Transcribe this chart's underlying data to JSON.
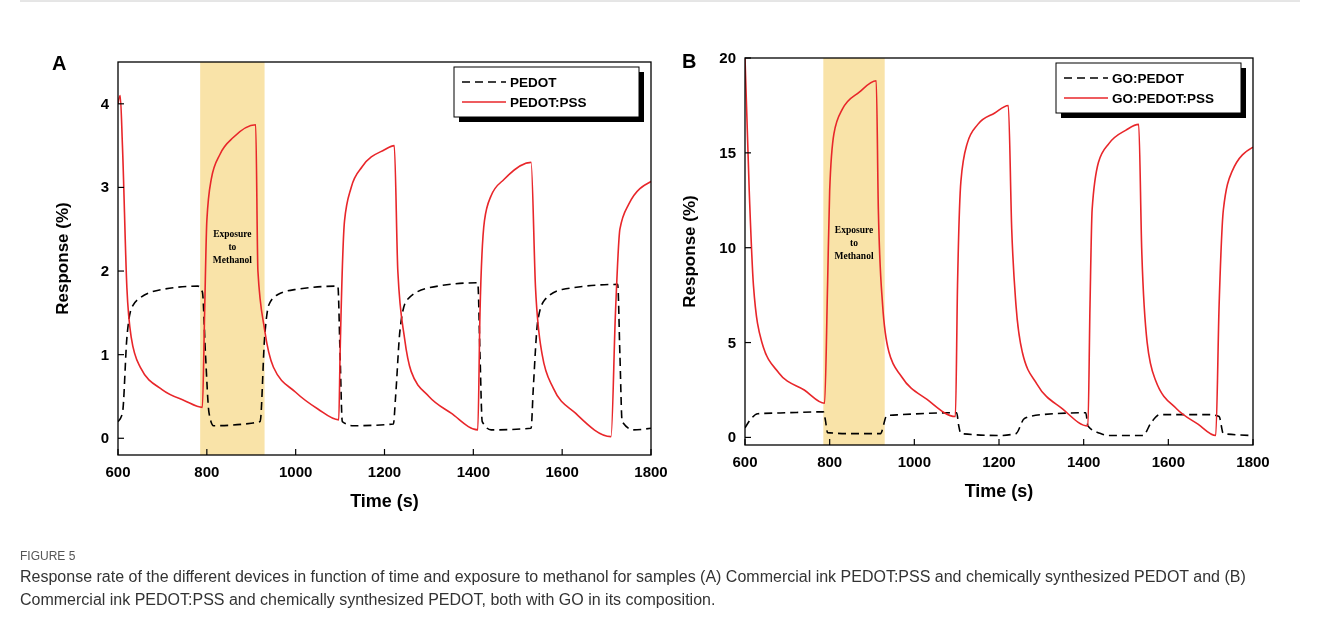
{
  "chart_data": [
    {
      "type": "line",
      "title": "A",
      "xlabel": "Time (s)",
      "ylabel": "Response (%)",
      "xlim": [
        600,
        1800
      ],
      "ylim": [
        -0.2,
        4.5
      ],
      "xticks": [
        600,
        800,
        1000,
        1200,
        1400,
        1600,
        1800
      ],
      "yticks": [
        0,
        1,
        2,
        3,
        4
      ],
      "grid": false,
      "legend": "top right",
      "bands": [
        {
          "axis": "x",
          "from": 785,
          "to": 930,
          "label": "Exposure to Methanol",
          "color": "#f9e3a8"
        }
      ],
      "annotations": [
        "FIGURE 5",
        "Response rate of the different devices in function of time and exposure to methanol for samples (A) Commercial ink PEDOT:PSS and chemically synthesized PEDOT and (B) Commercial ink PEDOT:PSS and chemically synthesized PEDOT, both with GO in its composition."
      ],
      "series": [
        {
          "name": "PEDOT",
          "color": "#000000",
          "line_style": "dashed",
          "x": [
            600,
            610,
            620,
            630,
            650,
            700,
            780,
            790,
            797,
            805,
            815,
            900,
            920,
            930,
            940,
            960,
            1000,
            1095,
            1100,
            1105,
            1130,
            1220,
            1225,
            1235,
            1250,
            1300,
            1410,
            1415,
            1420,
            1440,
            1530,
            1535,
            1545,
            1560,
            1600,
            1725,
            1730,
            1735,
            1760,
            1800
          ],
          "values": [
            0.2,
            0.3,
            1.2,
            1.55,
            1.68,
            1.78,
            1.82,
            1.75,
            1.0,
            0.3,
            0.15,
            0.18,
            0.2,
            1.2,
            1.6,
            1.72,
            1.78,
            1.82,
            1.0,
            0.2,
            0.15,
            0.17,
            0.5,
            1.3,
            1.65,
            1.8,
            1.86,
            1.0,
            0.2,
            0.1,
            0.12,
            0.6,
            1.4,
            1.65,
            1.78,
            1.84,
            1.0,
            0.2,
            0.1,
            0.12
          ]
        },
        {
          "name": "PEDOT:PSS",
          "color": "#e8262a",
          "line_style": "solid",
          "x": [
            600,
            605,
            610,
            620,
            630,
            650,
            700,
            750,
            790,
            795,
            800,
            810,
            830,
            860,
            910,
            915,
            930,
            950,
            1000,
            1050,
            1097,
            1100,
            1110,
            1125,
            1150,
            1200,
            1222,
            1230,
            1245,
            1260,
            1300,
            1350,
            1410,
            1415,
            1425,
            1440,
            1470,
            1530,
            1540,
            1555,
            1580,
            1630,
            1710,
            1720,
            1730,
            1750,
            1800
          ],
          "values": [
            4.0,
            4.1,
            3.5,
            1.8,
            1.2,
            0.85,
            0.58,
            0.45,
            0.37,
            1.5,
            2.6,
            3.1,
            3.4,
            3.6,
            3.75,
            2.0,
            1.3,
            0.85,
            0.55,
            0.35,
            0.22,
            1.0,
            2.6,
            3.0,
            3.25,
            3.45,
            3.5,
            2.0,
            1.2,
            0.8,
            0.5,
            0.3,
            0.1,
            1.5,
            2.6,
            2.9,
            3.1,
            3.3,
            1.8,
            1.0,
            0.6,
            0.3,
            0.02,
            1.5,
            2.5,
            2.8,
            3.07
          ]
        }
      ]
    },
    {
      "type": "line",
      "title": "B",
      "xlabel": "Time (s)",
      "ylabel": "Response (%)",
      "xlim": [
        600,
        1800
      ],
      "ylim": [
        -0.4,
        20
      ],
      "xticks": [
        600,
        800,
        1000,
        1200,
        1400,
        1600,
        1800
      ],
      "yticks": [
        0,
        5,
        10,
        15,
        20
      ],
      "grid": false,
      "legend": "top right",
      "bands": [
        {
          "axis": "x",
          "from": 785,
          "to": 930,
          "label": "Exposure to Methanol",
          "color": "#f9e3a8"
        }
      ],
      "series": [
        {
          "name": "GO:PEDOT",
          "color": "#000000",
          "line_style": "dashed",
          "x": [
            600,
            615,
            630,
            700,
            785,
            790,
            795,
            850,
            920,
            935,
            970,
            1100,
            1105,
            1110,
            1200,
            1240,
            1260,
            1300,
            1405,
            1410,
            1440,
            1460,
            1540,
            1560,
            1580,
            1700,
            1720,
            1730,
            1800
          ],
          "values": [
            0.5,
            1.0,
            1.25,
            1.3,
            1.35,
            0.9,
            0.25,
            0.2,
            0.2,
            1.15,
            1.2,
            1.3,
            0.6,
            0.2,
            0.1,
            0.2,
            1.0,
            1.2,
            1.3,
            0.6,
            0.2,
            0.1,
            0.1,
            0.8,
            1.2,
            1.2,
            1.1,
            0.2,
            0.1
          ]
        },
        {
          "name": "GO:PEDOT:PSS",
          "color": "#e8262a",
          "line_style": "solid",
          "x": [
            600,
            610,
            620,
            640,
            680,
            740,
            788,
            795,
            800,
            810,
            830,
            870,
            910,
            915,
            925,
            940,
            970,
            1030,
            1097,
            1102,
            1110,
            1125,
            1150,
            1190,
            1222,
            1230,
            1240,
            1255,
            1290,
            1350,
            1410,
            1415,
            1420,
            1435,
            1460,
            1500,
            1530,
            1537,
            1550,
            1570,
            1620,
            1670,
            1712,
            1720,
            1730,
            1750,
            1800
          ],
          "values": [
            20,
            13,
            8,
            5,
            3.4,
            2.5,
            1.8,
            8,
            13,
            16,
            17.3,
            18.2,
            18.8,
            12,
            7,
            4.5,
            3.2,
            2.0,
            1.1,
            8,
            13.5,
            15.5,
            16.5,
            17.1,
            17.5,
            11,
            7,
            4.5,
            2.8,
            1.5,
            0.6,
            7,
            12,
            14.5,
            15.5,
            16.2,
            16.5,
            10,
            5,
            3,
            1.5,
            0.7,
            0.1,
            7,
            12,
            14,
            15.3
          ]
        }
      ]
    }
  ]
}
